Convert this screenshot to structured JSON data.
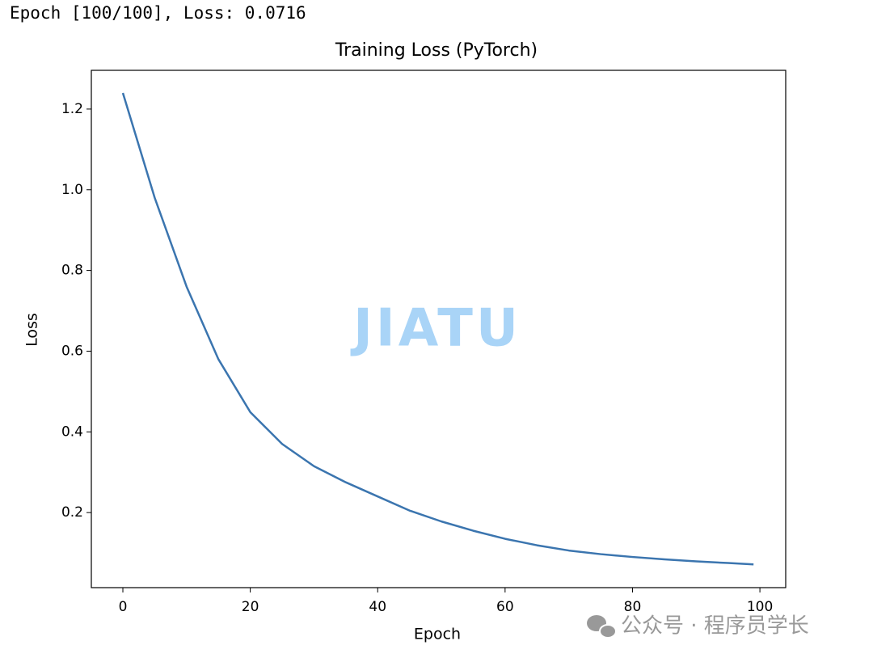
{
  "console_output": "Epoch [100/100], Loss: 0.0716",
  "watermark": "JIATU",
  "footer": "公众号 · 程序员学长",
  "chart_data": {
    "type": "line",
    "title": "Training Loss (PyTorch)",
    "x_label": "Epoch",
    "y_label": "Loss",
    "x": [
      0,
      5,
      10,
      15,
      20,
      25,
      30,
      35,
      40,
      45,
      50,
      55,
      60,
      65,
      70,
      75,
      80,
      85,
      90,
      95,
      99
    ],
    "values": [
      1.24,
      0.98,
      0.76,
      0.58,
      0.449,
      0.37,
      0.315,
      0.275,
      0.24,
      0.205,
      0.178,
      0.155,
      0.135,
      0.119,
      0.106,
      0.097,
      0.09,
      0.084,
      0.079,
      0.075,
      0.0716
    ],
    "color": "#3b75af",
    "xlim": [
      -4.95,
      104.05
    ],
    "ylim": [
      0.014,
      1.296
    ],
    "xticks": [
      0,
      20,
      40,
      60,
      80,
      100
    ],
    "yticks": [
      0.2,
      0.4,
      0.6,
      0.8,
      {
        "value": 1,
        "label": "1.0"
      },
      1.2
    ]
  }
}
